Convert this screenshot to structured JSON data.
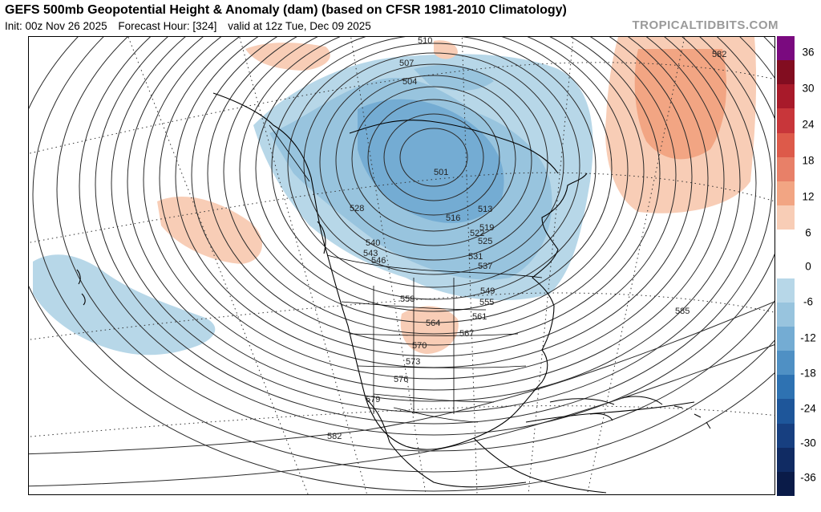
{
  "header": {
    "title": "GEFS 500mb Geopotential Height & Anomaly (dam) (based on CFSR 1981-2010 Climatology)",
    "init": "Init: 00z Nov 26 2025",
    "forecast_hour": "Forecast Hour: [324]",
    "valid": "valid at 12z Tue, Dec 09 2025",
    "brand": "TROPICALTIDBITS.COM"
  },
  "colorbar": {
    "ticks": [
      "36",
      "30",
      "24",
      "18",
      "12",
      "6",
      "0",
      "-6",
      "-12",
      "-18",
      "-24",
      "-30",
      "-36"
    ],
    "colors": [
      "#7a0a7f",
      "#820d20",
      "#a81a2a",
      "#c8363a",
      "#dd5a4a",
      "#e88068",
      "#f2a583",
      "#f8cdb6",
      "#ffffff",
      "#ffffff",
      "#b7d7e8",
      "#98c4de",
      "#74acd3",
      "#4f90c4",
      "#2e72b2",
      "#1e569a",
      "#173f80",
      "#102b63",
      "#0a1b48"
    ]
  },
  "contour_labels": [
    "510",
    "507",
    "504",
    "501",
    "513",
    "516",
    "519",
    "522",
    "525",
    "528",
    "531",
    "537",
    "540",
    "543",
    "546",
    "549",
    "555",
    "558",
    "561",
    "564",
    "567",
    "570",
    "573",
    "576",
    "579",
    "582",
    "582",
    "585"
  ]
}
